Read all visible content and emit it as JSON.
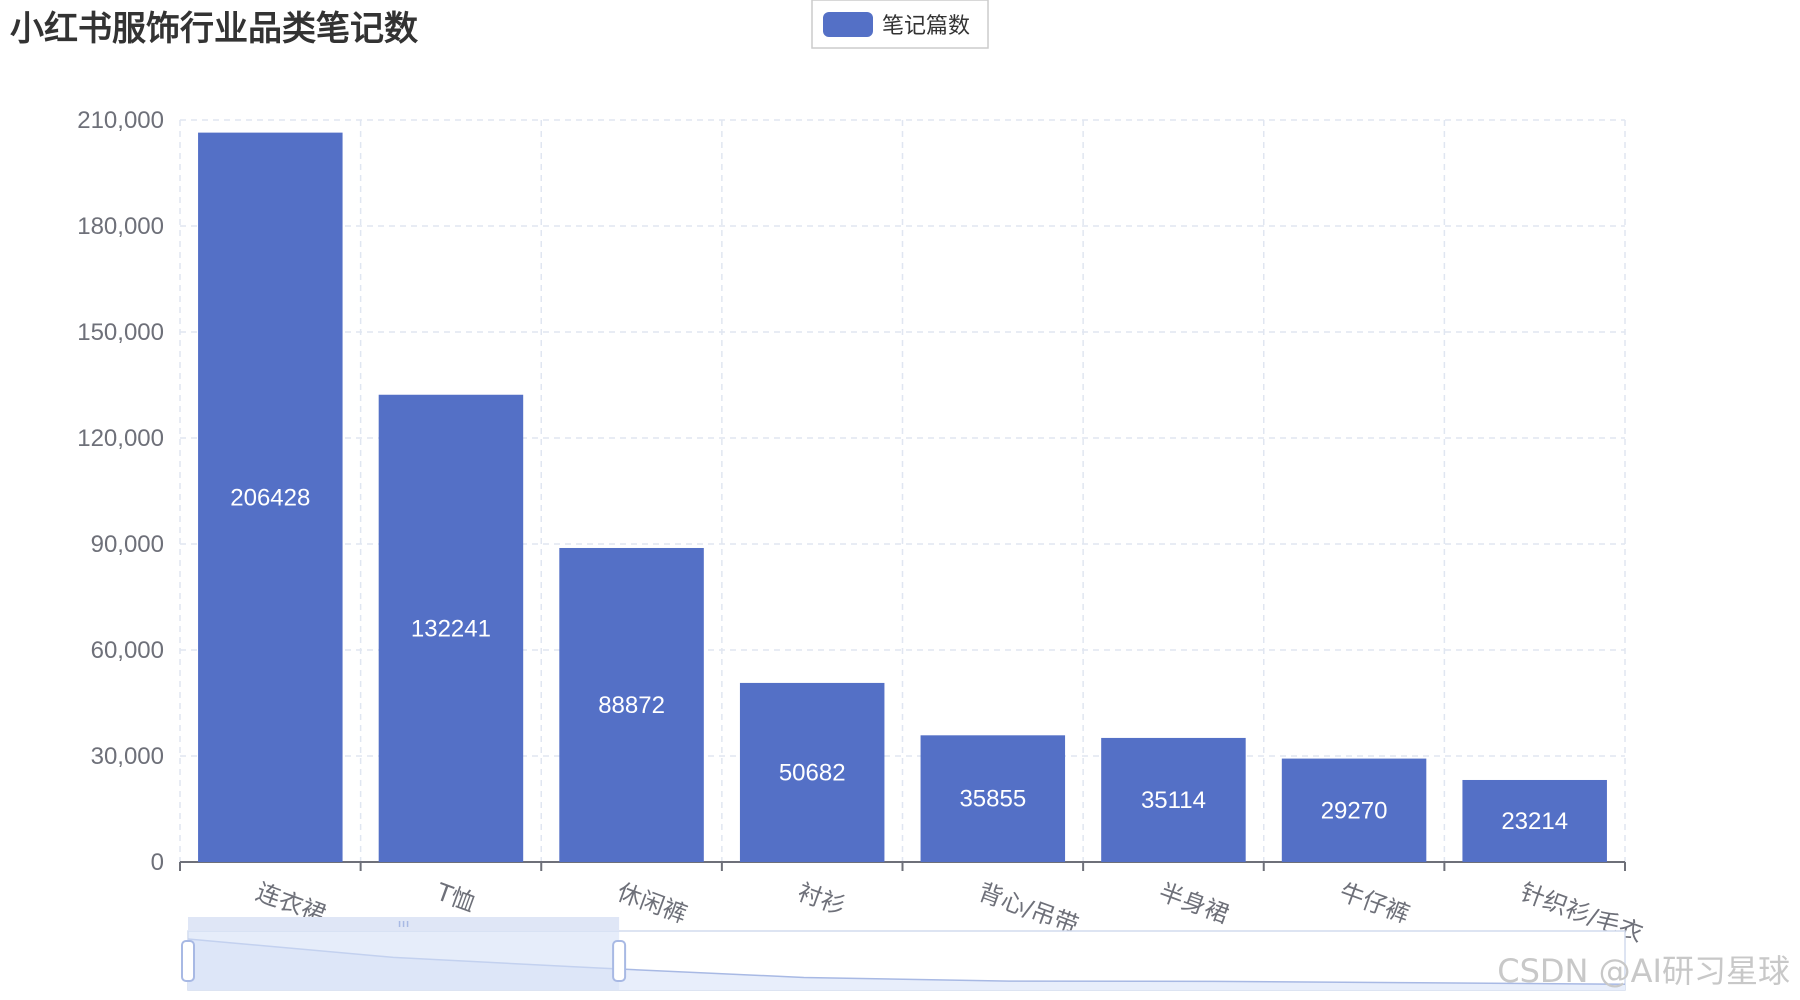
{
  "chart_data": {
    "type": "bar",
    "title": "小红书服饰行业品类笔记数",
    "legend": {
      "position": "top-center",
      "entries": [
        "笔记篇数"
      ]
    },
    "categories": [
      "连衣裙",
      "T恤",
      "休闲裤",
      "衬衫",
      "背心/吊带",
      "半身裙",
      "牛仔裤",
      "针织衫/毛衣"
    ],
    "series": [
      {
        "name": "笔记篇数",
        "values": [
          206428,
          132241,
          88872,
          50682,
          35855,
          35114,
          29270,
          23214
        ],
        "color": "#5470c6"
      }
    ],
    "ylim": [
      0,
      210000
    ],
    "yticks": [
      0,
      30000,
      60000,
      90000,
      120000,
      150000,
      180000,
      210000
    ],
    "ytick_labels": [
      "0",
      "30,000",
      "60,000",
      "90,000",
      "120,000",
      "150,000",
      "180,000",
      "210,000"
    ],
    "grid": true,
    "data_labels": "inside-center",
    "datazoom": {
      "type": "slider",
      "position": "bottom",
      "start_percent": 0,
      "end_percent": 30
    }
  },
  "watermark": "CSDN @AI研习星球",
  "colors": {
    "bar": "#5470c6",
    "axis_text": "#6e7079",
    "grid": "#e0e6f1",
    "datazoom_fill": "#d6e1f7"
  }
}
